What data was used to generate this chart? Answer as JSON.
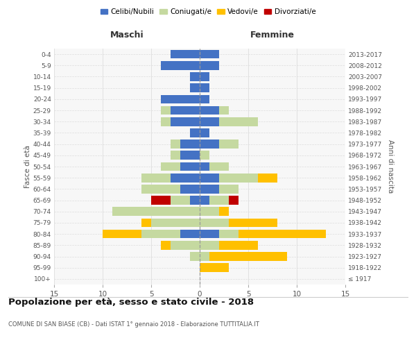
{
  "age_groups": [
    "100+",
    "95-99",
    "90-94",
    "85-89",
    "80-84",
    "75-79",
    "70-74",
    "65-69",
    "60-64",
    "55-59",
    "50-54",
    "45-49",
    "40-44",
    "35-39",
    "30-34",
    "25-29",
    "20-24",
    "15-19",
    "10-14",
    "5-9",
    "0-4"
  ],
  "birth_years": [
    "≤ 1917",
    "1918-1922",
    "1923-1927",
    "1928-1932",
    "1933-1937",
    "1938-1942",
    "1943-1947",
    "1948-1952",
    "1953-1957",
    "1958-1962",
    "1963-1967",
    "1968-1972",
    "1973-1977",
    "1978-1982",
    "1983-1987",
    "1988-1992",
    "1993-1997",
    "1998-2002",
    "2003-2007",
    "2008-2012",
    "2013-2017"
  ],
  "maschi": {
    "celibi": [
      0,
      0,
      0,
      0,
      2,
      0,
      0,
      1,
      2,
      3,
      2,
      2,
      2,
      1,
      3,
      3,
      4,
      1,
      1,
      4,
      3
    ],
    "coniugati": [
      0,
      0,
      1,
      3,
      4,
      5,
      9,
      2,
      4,
      3,
      2,
      1,
      1,
      0,
      1,
      1,
      0,
      0,
      0,
      0,
      0
    ],
    "vedovi": [
      0,
      0,
      0,
      1,
      4,
      1,
      0,
      0,
      0,
      0,
      0,
      0,
      0,
      0,
      0,
      0,
      0,
      0,
      0,
      0,
      0
    ],
    "divorziati": [
      0,
      0,
      0,
      0,
      0,
      0,
      0,
      2,
      0,
      0,
      0,
      0,
      0,
      0,
      0,
      0,
      0,
      0,
      0,
      0,
      0
    ]
  },
  "femmine": {
    "nubili": [
      0,
      0,
      0,
      0,
      2,
      0,
      0,
      1,
      2,
      2,
      1,
      0,
      2,
      1,
      2,
      2,
      1,
      1,
      1,
      2,
      2
    ],
    "coniugate": [
      0,
      0,
      1,
      2,
      2,
      3,
      2,
      2,
      2,
      4,
      2,
      1,
      2,
      0,
      4,
      1,
      0,
      0,
      0,
      0,
      0
    ],
    "vedove": [
      0,
      3,
      8,
      4,
      9,
      5,
      1,
      0,
      0,
      2,
      0,
      0,
      0,
      0,
      0,
      0,
      0,
      0,
      0,
      0,
      0
    ],
    "divorziate": [
      0,
      0,
      0,
      0,
      0,
      0,
      0,
      1,
      0,
      0,
      0,
      0,
      0,
      0,
      0,
      0,
      0,
      0,
      0,
      0,
      0
    ]
  },
  "colors": {
    "celibi_nubili": "#4472c4",
    "coniugati": "#c5d9a0",
    "vedovi": "#ffc000",
    "divorziati": "#c00000"
  },
  "title": "Popolazione per età, sesso e stato civile - 2018",
  "subtitle": "COMUNE DI SAN BIASE (CB) - Dati ISTAT 1° gennaio 2018 - Elaborazione TUTTITALIA.IT",
  "xlabel_left": "Maschi",
  "xlabel_right": "Femmine",
  "ylabel_left": "Fasce di età",
  "ylabel_right": "Anni di nascita",
  "xlim": 15,
  "bg_color": "#ffffff",
  "grid_color": "#dddddd",
  "legend_labels": [
    "Celibi/Nubili",
    "Coniugati/e",
    "Vedovi/e",
    "Divorziati/e"
  ]
}
